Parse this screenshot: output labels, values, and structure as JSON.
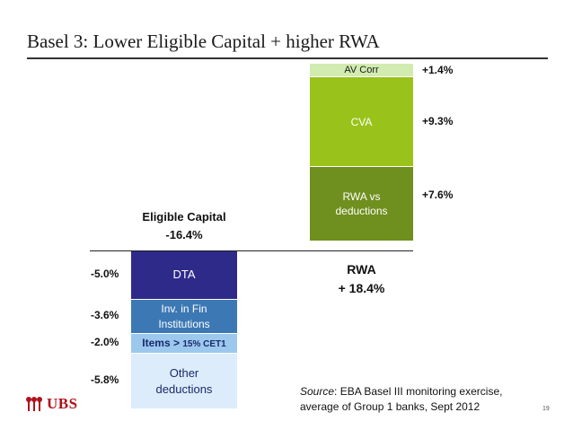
{
  "title": "Basel 3: Lower Eligible Capital + higher RWA",
  "chart_data": {
    "type": "waterfall",
    "title": "Basel 3: Lower Eligible Capital + higher RWA",
    "eligible_capital": {
      "label": "Eligible Capital",
      "total": "-16.4%",
      "segments": [
        {
          "name": "DTA",
          "value_pct": -5.0,
          "label": "-5.0%",
          "text": "DTA",
          "color": "#2e2a8a",
          "text_color": "#ffffff"
        },
        {
          "name": "Inv. in Fin Institutions",
          "value_pct": -3.6,
          "label": "-3.6%",
          "text1": "Inv. in Fin",
          "text2": "Institutions",
          "color": "#3c78b4",
          "text_color": "#ffffff"
        },
        {
          "name": "Items > 15% CET1",
          "value_pct": -2.0,
          "label": "-2.0%",
          "text1": "Items",
          "text2": ">",
          "text3": "15% CET1",
          "color": "#9cc8ee",
          "text_color": "#1a2a6a"
        },
        {
          "name": "Other deductions",
          "value_pct": -5.8,
          "label": "-5.8%",
          "text1": "Other",
          "text2": "deductions",
          "color": "#dcecfa",
          "text_color": "#1a2a6a"
        }
      ]
    },
    "rwa": {
      "label": "RWA",
      "total": "+ 18.4%",
      "segments": [
        {
          "name": "RWA vs deductions",
          "value_pct": 7.6,
          "label": "+7.6%",
          "text1": "RWA vs",
          "text2": "deductions",
          "color": "#6f8f1e",
          "text_color": "#ffffff"
        },
        {
          "name": "CVA",
          "value_pct": 9.3,
          "label": "+9.3%",
          "text": "CVA",
          "color": "#99c31a",
          "text_color": "#ffffff"
        },
        {
          "name": "AV Corr",
          "value_pct": 1.4,
          "label": "+1.4%",
          "text": "AV Corr",
          "color": "#d2ebb0",
          "text_color": "#1a1a1a"
        }
      ]
    }
  },
  "source": {
    "prefix": "Source",
    "text": ": EBA Basel III monitoring exercise,",
    "line2": "average of Group 1 banks, Sept 2012"
  },
  "logo": "UBS",
  "page_number": "19",
  "colors": {
    "title_rule": "#333333",
    "logo_red": "#b0121b"
  }
}
